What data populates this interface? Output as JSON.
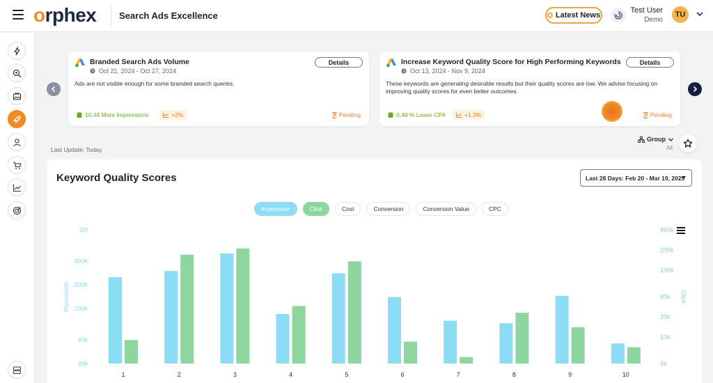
{
  "app": {
    "logo_brand": "orphex",
    "page_title": "Search Ads Excellence"
  },
  "header": {
    "latest_news_label": "Latest News",
    "user_name": "Test User",
    "user_org": "Demo",
    "avatar_initials": "TU"
  },
  "sidebar": {
    "items": [
      {
        "icon": "bolt-icon"
      },
      {
        "icon": "search-zoom-icon"
      },
      {
        "icon": "image-gallery-icon"
      },
      {
        "icon": "rocket-icon",
        "active": true
      },
      {
        "icon": "user-icon"
      },
      {
        "icon": "cart-icon"
      },
      {
        "icon": "trend-chart-icon"
      },
      {
        "icon": "target-icon"
      }
    ],
    "bottom_icon": "server-icon"
  },
  "insights": [
    {
      "title": "Branded Search Ads Volume",
      "date_range": "Oct 21, 2024 - Oct 27, 2024",
      "description": "Ads are not visible enough for some branded search queries.",
      "details_label": "Details",
      "metric": "10,44 More Impressions",
      "change": "+2%",
      "status": "Pending"
    },
    {
      "title": "Increase Keyword Quality Score for High Performing Keywords",
      "date_range": "Oct 13, 2024 - Nov 9, 2024",
      "description": "These keywords are generating desirable results but their quality scores are low. We advise focusing on improving quality scores for even better outcomes.",
      "details_label": "Details",
      "metric": "0,48 % Lower CPA",
      "change": "+1.2%",
      "status": "Pending"
    }
  ],
  "toolbar": {
    "last_update": "Last Update: Today",
    "group_label": "Group",
    "group_value": "All"
  },
  "panel": {
    "title": "Keyword Quality Scores",
    "date_filter": "Last 28 Days: Feb 20 - Mar 19, 2025",
    "metric_pills": [
      {
        "label": "Impression",
        "state": "on-imp"
      },
      {
        "label": "Click",
        "state": "on-clk"
      },
      {
        "label": "Cost",
        "state": ""
      },
      {
        "label": "Conversion",
        "state": ""
      },
      {
        "label": "Conversion Value",
        "state": ""
      },
      {
        "label": "CPC",
        "state": ""
      }
    ]
  },
  "colors": {
    "accent": "#f08a24",
    "impression": "#8cdcf6",
    "click": "#8ed6a0"
  },
  "chart_data": {
    "type": "bar",
    "categories": [
      "1",
      "2",
      "3",
      "4",
      "5",
      "6",
      "7",
      "8",
      "9",
      "10"
    ],
    "yscale": "log",
    "series": [
      {
        "name": "Impression",
        "axis": "left",
        "values": [
          250000,
          300000,
          500000,
          85000,
          280000,
          140000,
          70000,
          65000,
          145000,
          36000
        ]
      },
      {
        "name": "Click",
        "axis": "right",
        "values": [
          9000,
          170000,
          210000,
          29000,
          135000,
          8500,
          5000,
          23000,
          14000,
          7000
        ]
      }
    ],
    "left_axis": {
      "label": "Impression",
      "ticks": [
        "20k",
        "40k",
        "100k",
        "200k",
        "400k",
        "1M"
      ],
      "tick_values": [
        20000,
        40000,
        100000,
        200000,
        400000,
        1000000
      ]
    },
    "right_axis": {
      "label": "Click",
      "ticks": [
        "4k",
        "10k",
        "20k",
        "40k",
        "100k",
        "200k",
        "400k"
      ],
      "tick_values": [
        4000,
        10000,
        20000,
        40000,
        100000,
        200000,
        400000
      ]
    },
    "grid": false,
    "legend": "none"
  }
}
